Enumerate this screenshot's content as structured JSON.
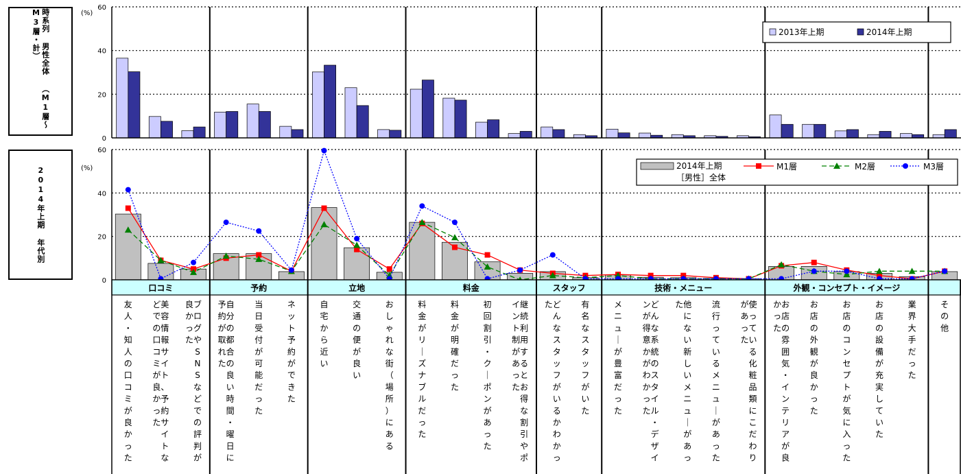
{
  "top_label": "時系列 男性全体 （M1層～M3層・計）",
  "bottom_label": "2014年上期 年代別",
  "chart_data": [
    {
      "type": "bar",
      "ylabel": "(%)",
      "ylim": [
        0,
        60
      ],
      "yticks": [
        0,
        20,
        40,
        60
      ],
      "grid": true,
      "legend": "top-right",
      "categories": [
        "友人・知人の口コミが良かった",
        "美容情報サイト、予約サイトなどでの口コミが良かった",
        "ブログやSNSなどでの評判が良かった",
        "自分の都合の良い時間・曜日に予約が取れた",
        "当日受付が可能だった",
        "ネット予約ができた",
        "自宅から近い",
        "交通の便が良い",
        "おしゃれな街（場所）にある",
        "料金がリーズナブルだった",
        "料金が明確だった",
        "初回割引・クーポンがあった",
        "継続利用するとお得な割引やポイント制があった",
        "どんなスタッフがいるかわかった",
        "有名なスタッフがいた",
        "メニューが豊富だった",
        "どんな系統のスタイル・デザインが得意かがわかった",
        "他にない新しいメニューがあった",
        "流行っているメニューがあった",
        "使っている化粧品類にこだわりがあった",
        "お店の雰囲気・インテリアが良かった",
        "お店の外観が良かった",
        "お店のコンセプトが気に入った",
        "お店の設備が充実していた",
        "業界大手だった",
        "その他"
      ],
      "series": [
        {
          "name": "2013年上期",
          "color": "#ccccff",
          "values": [
            36.5,
            9.8,
            3.3,
            11.8,
            15.5,
            5.3,
            30.2,
            23.0,
            3.8,
            22.3,
            18.2,
            7.2,
            2.0,
            5.0,
            1.5,
            4.0,
            2.2,
            1.5,
            1.0,
            1.0,
            10.5,
            6.2,
            3.2,
            1.5,
            2.0,
            1.5
          ]
        },
        {
          "name": "2014年上期",
          "color": "#333399",
          "values": [
            30.3,
            7.6,
            5.0,
            12.1,
            12.1,
            3.8,
            33.3,
            14.8,
            3.5,
            26.5,
            17.3,
            8.3,
            3.0,
            3.8,
            1.0,
            2.3,
            1.2,
            1.0,
            0.7,
            0.5,
            6.2,
            6.2,
            3.8,
            3.0,
            1.5,
            3.8
          ]
        }
      ]
    },
    {
      "type": "bar+line",
      "ylabel": "(%)",
      "ylim": [
        0,
        60
      ],
      "yticks": [
        0,
        20,
        40,
        60
      ],
      "grid": true,
      "legend": "top-right",
      "groups": [
        {
          "label": "口コミ",
          "count": 3
        },
        {
          "label": "予約",
          "count": 3
        },
        {
          "label": "立地",
          "count": 3
        },
        {
          "label": "料金",
          "count": 4
        },
        {
          "label": "スタッフ",
          "count": 2
        },
        {
          "label": "技術・メニュー",
          "count": 5
        },
        {
          "label": "外観・コンセプト・イメージ",
          "count": 5
        },
        {
          "label": "",
          "count": 1
        }
      ],
      "bars": {
        "name": "2014年上期\n［男性］全体",
        "color": "#c0c0c0",
        "values": [
          30.3,
          7.6,
          5.0,
          12.1,
          12.1,
          3.8,
          33.3,
          14.8,
          3.5,
          26.5,
          17.3,
          8.3,
          3.0,
          3.8,
          1.0,
          2.3,
          1.2,
          1.0,
          0.7,
          0.5,
          6.2,
          6.2,
          3.8,
          3.0,
          1.5,
          3.8
        ]
      },
      "lines": [
        {
          "name": "M1層",
          "color": "#ff0000",
          "dash": "solid",
          "marker": "square",
          "values": [
            33.0,
            9.0,
            5.0,
            10.0,
            11.5,
            4.0,
            33.0,
            14.0,
            5.0,
            26.0,
            15.0,
            11.5,
            4.5,
            3.0,
            2.0,
            2.5,
            2.0,
            2.0,
            1.0,
            0.5,
            6.5,
            8.0,
            4.5,
            2.0,
            0.5,
            4.0
          ]
        },
        {
          "name": "M2層",
          "color": "#008000",
          "dash": "dash",
          "marker": "triangle",
          "values": [
            23.0,
            9.0,
            3.5,
            11.0,
            9.5,
            4.0,
            25.5,
            16.0,
            2.0,
            26.5,
            19.5,
            6.0,
            0.0,
            2.0,
            1.0,
            2.0,
            0.5,
            0.5,
            0.5,
            0.5,
            7.0,
            4.0,
            2.5,
            4.0,
            4.0,
            4.0
          ]
        },
        {
          "name": "M3層",
          "color": "#0000ff",
          "dash": "dot",
          "marker": "circle",
          "values": [
            41.5,
            0.5,
            8.0,
            26.5,
            22.5,
            4.5,
            59.5,
            19.0,
            0.5,
            34.0,
            26.5,
            0.5,
            4.5,
            11.5,
            0.5,
            0.5,
            0.5,
            0.5,
            0.5,
            0.5,
            0.5,
            4.0,
            4.0,
            0.5,
            0.5,
            4.0
          ]
        }
      ]
    }
  ]
}
